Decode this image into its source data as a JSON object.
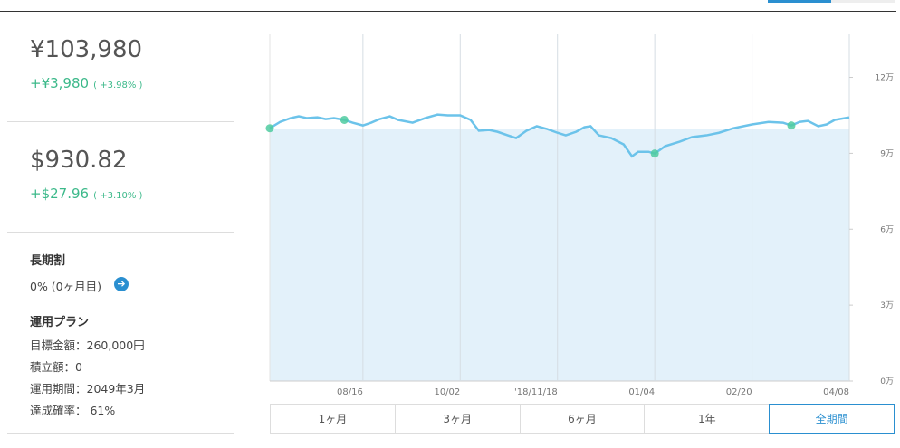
{
  "summary": {
    "jpy": {
      "value": "¥103,980",
      "change": "+¥3,980",
      "percent": "( +3.98% )"
    },
    "usd": {
      "value": "$930.82",
      "change": "+$27.96",
      "percent": "( +3.10% )"
    }
  },
  "long_term": {
    "title": "長期割",
    "text": "0% (0ヶ月目)"
  },
  "plan": {
    "title": "運用プラン",
    "rows": [
      "目標金額：260,000円",
      "積立額：0",
      "運用期間：2049年3月",
      "達成確率： 61%"
    ]
  },
  "periods": {
    "buttons": [
      "1ヶ月",
      "3ヶ月",
      "6ヶ月",
      "1年",
      "全期間"
    ],
    "active": 4
  },
  "chart_data": {
    "type": "line",
    "x": [
      0,
      5,
      10,
      14,
      18,
      23,
      27,
      31,
      36,
      40,
      45,
      49,
      53,
      58,
      62,
      69,
      75,
      81,
      86,
      92,
      97,
      101,
      106,
      110,
      115,
      119,
      124,
      129,
      134,
      139,
      143,
      148,
      152,
      155,
      159,
      165,
      171,
      175,
      178,
      183,
      186,
      191,
      198,
      204,
      211,
      217,
      224,
      233,
      241,
      248,
      252,
      256,
      260,
      265,
      269,
      273,
      280
    ],
    "series": [
      {
        "color": "#6cc3ea",
        "values": [
          99900,
          102400,
          103900,
          104600,
          103900,
          104200,
          103500,
          103900,
          103200,
          102100,
          101000,
          102100,
          103500,
          104600,
          103200,
          102100,
          103900,
          105300,
          105000,
          105000,
          103200,
          98900,
          99200,
          98500,
          97100,
          96000,
          98900,
          100700,
          99600,
          98100,
          97100,
          98500,
          100300,
          100700,
          97100,
          96000,
          93500,
          88800,
          90600,
          90600,
          89900,
          92800,
          94600,
          96400,
          97100,
          98100,
          99900,
          101400,
          102400,
          102100,
          101000,
          102400,
          102800,
          100700,
          101400,
          103200,
          104200
        ]
      }
    ],
    "area_level": 100000,
    "area_color": "#e3f1fa",
    "xlim": [
      0,
      280
    ],
    "xticks": [
      {
        "value": 45,
        "label": "08/16"
      },
      {
        "value": 92,
        "label": "10/02"
      },
      {
        "value": 139,
        "label": "'18/11/18"
      },
      {
        "value": 186,
        "label": "01/04"
      },
      {
        "value": 233,
        "label": "02/20"
      },
      {
        "value": 280,
        "label": "04/08"
      }
    ],
    "ylim": [
      0,
      137000
    ],
    "yticks": [
      {
        "value": 0,
        "label": "0万"
      },
      {
        "value": 30000,
        "label": "3万"
      },
      {
        "value": 60000,
        "label": "6万"
      },
      {
        "value": 90000,
        "label": "9万"
      },
      {
        "value": 120000,
        "label": "12万"
      }
    ],
    "grid": true
  }
}
